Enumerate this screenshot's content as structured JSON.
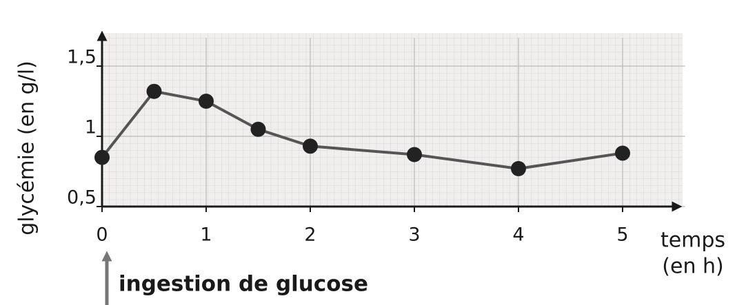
{
  "chart_data": {
    "type": "line",
    "y_label": "glycémie (en g/l)",
    "x_label": [
      "temps",
      "(en h)"
    ],
    "annotation": "ingestion de glucose",
    "x": [
      0,
      0.5,
      1,
      1.5,
      2,
      3,
      4,
      5
    ],
    "series": [
      {
        "color": "#555555",
        "values": [
          0.85,
          1.32,
          1.25,
          1.05,
          0.93,
          0.87,
          0.77,
          0.88
        ]
      }
    ],
    "xlim": [
      0,
      5.6
    ],
    "ylim": [
      0.5,
      1.7
    ],
    "xticks": [
      0,
      1,
      2,
      3,
      4,
      5
    ],
    "yticks": [
      {
        "value": 0.5,
        "label": "0,5"
      },
      1,
      {
        "value": 1.5,
        "label": "1,5"
      }
    ],
    "grid": true
  }
}
